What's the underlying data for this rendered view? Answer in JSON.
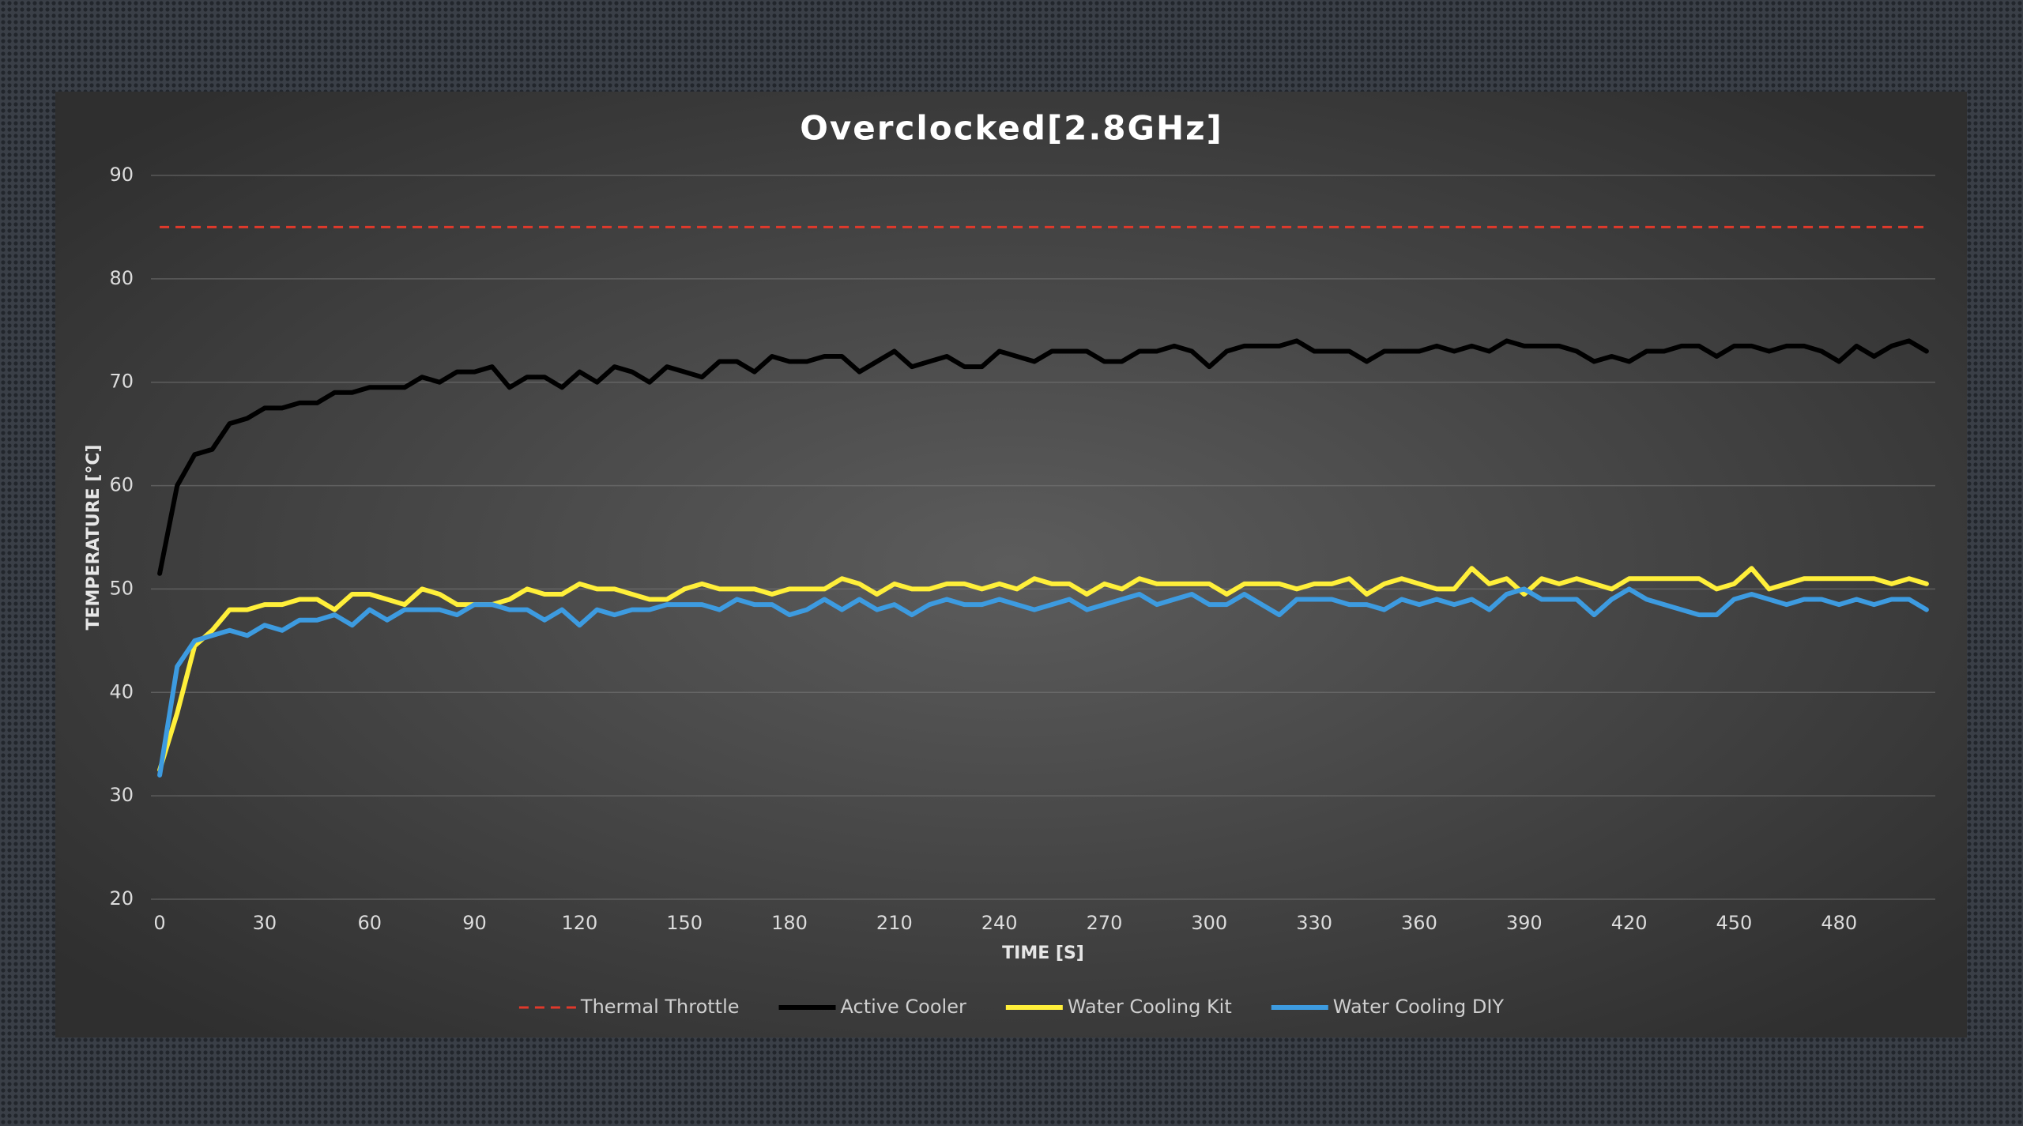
{
  "chart_data": {
    "type": "line",
    "title": "Overclocked[2.8GHz]",
    "x_label": "TIME [S]",
    "y_label": "TEMPERATURE [°C]",
    "x": [
      0,
      5,
      10,
      15,
      20,
      25,
      30,
      35,
      40,
      45,
      50,
      55,
      60,
      65,
      70,
      75,
      80,
      85,
      90,
      95,
      100,
      105,
      110,
      115,
      120,
      125,
      130,
      135,
      140,
      145,
      150,
      155,
      160,
      165,
      170,
      175,
      180,
      185,
      190,
      195,
      200,
      205,
      210,
      215,
      220,
      225,
      230,
      235,
      240,
      245,
      250,
      255,
      260,
      265,
      270,
      275,
      280,
      285,
      290,
      295,
      300,
      305,
      310,
      315,
      320,
      325,
      330,
      335,
      340,
      345,
      350,
      355,
      360,
      365,
      370,
      375,
      380,
      385,
      390,
      395,
      400,
      405,
      410,
      415,
      420,
      425,
      430,
      435,
      440,
      445,
      450,
      455,
      460,
      465,
      470,
      475,
      480,
      485,
      490,
      495,
      500,
      505
    ],
    "xlim": [
      -2.5,
      507.5
    ],
    "xticks": [
      0,
      30,
      60,
      90,
      120,
      150,
      180,
      210,
      240,
      270,
      300,
      330,
      360,
      390,
      420,
      450,
      480
    ],
    "ylim": [
      20,
      90
    ],
    "yticks": [
      20,
      30,
      40,
      50,
      60,
      70,
      80,
      90
    ],
    "grid": true,
    "legend": "bottom",
    "reference_lines": [
      {
        "name": "Thermal Throttle",
        "value": 85,
        "color": "#e0392b",
        "style": "dashed"
      }
    ],
    "series": [
      {
        "name": "Active Cooler",
        "color": "#000000",
        "values": [
          51.5,
          60,
          63,
          63.5,
          66,
          66.5,
          67.5,
          67.5,
          68,
          68,
          69,
          69,
          69.5,
          69.5,
          69.5,
          70.5,
          70,
          71,
          71,
          71.5,
          69.5,
          70.5,
          70.5,
          69.5,
          71,
          70,
          71.5,
          71,
          70,
          71.5,
          71,
          70.5,
          72,
          72,
          71,
          72.5,
          72,
          72,
          72.5,
          72.5,
          71,
          72,
          73,
          71.5,
          72,
          72.5,
          71.5,
          71.5,
          73,
          72.5,
          72,
          73,
          73,
          73,
          72,
          72,
          73,
          73,
          73.5,
          73,
          71.5,
          73,
          73.5,
          73.5,
          73.5,
          74,
          73,
          73,
          73,
          72,
          73,
          73,
          73,
          73.5,
          73,
          73.5,
          73,
          74,
          73.5,
          73.5,
          73.5,
          73,
          72,
          72.5,
          72,
          73,
          73,
          73.5,
          73.5,
          72.5,
          73.5,
          73.5,
          73,
          73.5,
          73.5,
          73,
          72,
          73.5,
          72.5,
          73.5,
          74,
          73
        ]
      },
      {
        "name": "Water Cooling Kit",
        "color": "#ffef3a",
        "values": [
          32.5,
          38,
          44.5,
          46,
          48,
          48,
          48.5,
          48.5,
          49,
          49,
          48,
          49.5,
          49.5,
          49,
          48.5,
          50,
          49.5,
          48.5,
          48.5,
          48.5,
          49,
          50,
          49.5,
          49.5,
          50.5,
          50,
          50,
          49.5,
          49,
          49,
          50,
          50.5,
          50,
          50,
          50,
          49.5,
          50,
          50,
          50,
          51,
          50.5,
          49.5,
          50.5,
          50,
          50,
          50.5,
          50.5,
          50,
          50.5,
          50,
          51,
          50.5,
          50.5,
          49.5,
          50.5,
          50,
          51,
          50.5,
          50.5,
          50.5,
          50.5,
          49.5,
          50.5,
          50.5,
          50.5,
          50,
          50.5,
          50.5,
          51,
          49.5,
          50.5,
          51,
          50.5,
          50,
          50,
          52,
          50.5,
          51,
          49.5,
          51,
          50.5,
          51,
          50.5,
          50,
          51,
          51,
          51,
          51,
          51,
          50,
          50.5,
          52,
          50,
          50.5,
          51,
          51,
          51,
          51,
          51,
          50.5,
          51,
          50.5
        ]
      },
      {
        "name": "Water Cooling DIY",
        "color": "#3d9be0",
        "values": [
          32,
          42.5,
          45,
          45.5,
          46,
          45.5,
          46.5,
          46,
          47,
          47,
          47.5,
          46.5,
          48,
          47,
          48,
          48,
          48,
          47.5,
          48.5,
          48.5,
          48,
          48,
          47,
          48,
          46.5,
          48,
          47.5,
          48,
          48,
          48.5,
          48.5,
          48.5,
          48,
          49,
          48.5,
          48.5,
          47.5,
          48,
          49,
          48,
          49,
          48,
          48.5,
          47.5,
          48.5,
          49,
          48.5,
          48.5,
          49,
          48.5,
          48,
          48.5,
          49,
          48,
          48.5,
          49,
          49.5,
          48.5,
          49,
          49.5,
          48.5,
          48.5,
          49.5,
          48.5,
          47.5,
          49,
          49,
          49,
          48.5,
          48.5,
          48,
          49,
          48.5,
          49,
          48.5,
          49,
          48,
          49.5,
          50,
          49,
          49,
          49,
          47.5,
          49,
          50,
          49,
          48.5,
          48,
          47.5,
          47.5,
          49,
          49.5,
          49,
          48.5,
          49,
          49,
          48.5,
          49,
          48.5,
          49,
          49,
          48
        ]
      }
    ]
  }
}
